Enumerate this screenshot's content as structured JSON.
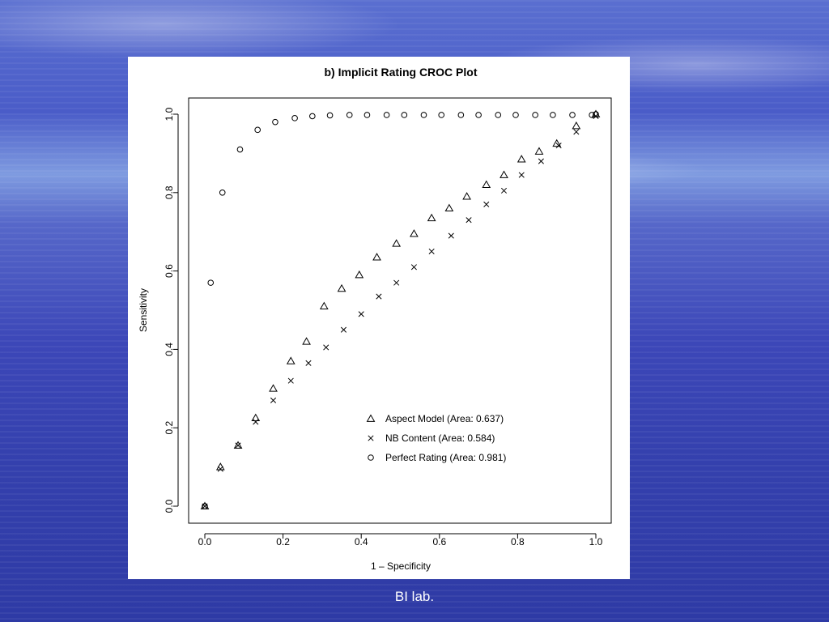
{
  "footer": {
    "label": "BI lab."
  },
  "chart_data": {
    "type": "scatter",
    "title": "b) Implicit Rating CROC Plot",
    "xlabel": "1 – Specificity",
    "ylabel": "Sensitivity",
    "xlim": [
      0,
      1
    ],
    "ylim": [
      0,
      1
    ],
    "x_ticks": [
      "0.0",
      "0.2",
      "0.4",
      "0.6",
      "0.8",
      "1.0"
    ],
    "y_ticks": [
      "0.0",
      "0.2",
      "0.4",
      "0.6",
      "0.8",
      "1.0"
    ],
    "grid": false,
    "legend_position": "bottom-right",
    "series": [
      {
        "name": "Aspect Model (Area: 0.637)",
        "marker": "triangle",
        "points": [
          [
            0.0,
            0.0
          ],
          [
            0.04,
            0.1
          ],
          [
            0.085,
            0.155
          ],
          [
            0.13,
            0.225
          ],
          [
            0.175,
            0.3
          ],
          [
            0.22,
            0.37
          ],
          [
            0.26,
            0.42
          ],
          [
            0.305,
            0.51
          ],
          [
            0.35,
            0.555
          ],
          [
            0.395,
            0.59
          ],
          [
            0.44,
            0.635
          ],
          [
            0.49,
            0.67
          ],
          [
            0.535,
            0.695
          ],
          [
            0.58,
            0.735
          ],
          [
            0.625,
            0.76
          ],
          [
            0.67,
            0.79
          ],
          [
            0.72,
            0.82
          ],
          [
            0.765,
            0.845
          ],
          [
            0.81,
            0.885
          ],
          [
            0.855,
            0.905
          ],
          [
            0.9,
            0.925
          ],
          [
            0.95,
            0.97
          ],
          [
            1.0,
            1.0
          ]
        ]
      },
      {
        "name": "NB Content (Area: 0.584)",
        "marker": "cross",
        "points": [
          [
            0.0,
            0.0
          ],
          [
            0.04,
            0.095
          ],
          [
            0.085,
            0.155
          ],
          [
            0.13,
            0.215
          ],
          [
            0.175,
            0.27
          ],
          [
            0.22,
            0.32
          ],
          [
            0.265,
            0.365
          ],
          [
            0.31,
            0.405
          ],
          [
            0.355,
            0.45
          ],
          [
            0.4,
            0.49
          ],
          [
            0.445,
            0.535
          ],
          [
            0.49,
            0.57
          ],
          [
            0.535,
            0.61
          ],
          [
            0.58,
            0.65
          ],
          [
            0.63,
            0.69
          ],
          [
            0.675,
            0.73
          ],
          [
            0.72,
            0.77
          ],
          [
            0.765,
            0.805
          ],
          [
            0.81,
            0.845
          ],
          [
            0.86,
            0.88
          ],
          [
            0.905,
            0.92
          ],
          [
            0.95,
            0.955
          ],
          [
            1.0,
            0.995
          ]
        ]
      },
      {
        "name": "Perfect Rating  (Area: 0.981)",
        "marker": "circle",
        "points": [
          [
            0.0,
            0.0
          ],
          [
            0.015,
            0.57
          ],
          [
            0.045,
            0.8
          ],
          [
            0.09,
            0.91
          ],
          [
            0.135,
            0.96
          ],
          [
            0.18,
            0.98
          ],
          [
            0.23,
            0.99
          ],
          [
            0.275,
            0.995
          ],
          [
            0.32,
            0.997
          ],
          [
            0.37,
            0.998
          ],
          [
            0.415,
            0.998
          ],
          [
            0.465,
            0.998
          ],
          [
            0.51,
            0.998
          ],
          [
            0.56,
            0.998
          ],
          [
            0.605,
            0.998
          ],
          [
            0.655,
            0.998
          ],
          [
            0.7,
            0.998
          ],
          [
            0.75,
            0.998
          ],
          [
            0.795,
            0.998
          ],
          [
            0.845,
            0.998
          ],
          [
            0.89,
            0.998
          ],
          [
            0.94,
            0.998
          ],
          [
            0.99,
            0.998
          ],
          [
            1.0,
            1.0
          ]
        ]
      }
    ]
  }
}
